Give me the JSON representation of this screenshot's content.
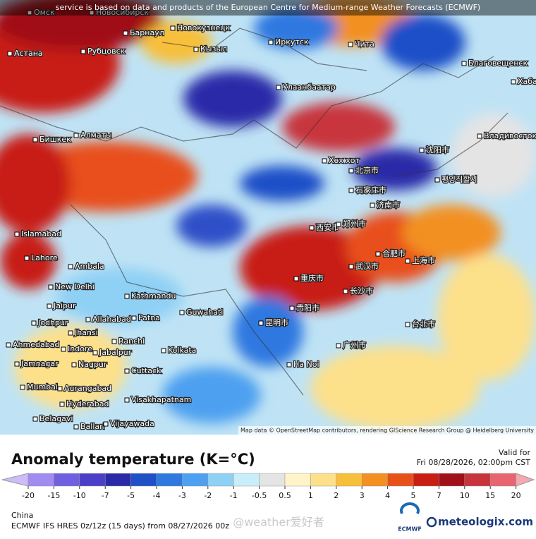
{
  "header": {
    "notice": "service is based on data and products of the European Centre for Medium-range Weather Forecasts (ECMWF)"
  },
  "map": {
    "attribution": "Map data © OpenStreetMap contributors, rendering GIScience Research Group @ Heidelberg University",
    "cities": [
      {
        "name": "Омск"
      },
      {
        "name": "Новосибирск"
      },
      {
        "name": "Барнаул"
      },
      {
        "name": "Новокузнецк"
      },
      {
        "name": "Астана"
      },
      {
        "name": "Рубцовск"
      },
      {
        "name": "Кызыл"
      },
      {
        "name": "Иркутск"
      },
      {
        "name": "Чита"
      },
      {
        "name": "Улаанбаатар"
      },
      {
        "name": "Благовещенск"
      },
      {
        "name": "Хабар"
      },
      {
        "name": "Бишкек"
      },
      {
        "name": "Алматы"
      },
      {
        "name": "Владивосток"
      },
      {
        "name": "Хөх хот"
      },
      {
        "name": "北京市"
      },
      {
        "name": "沈阳市"
      },
      {
        "name": "평양직할시"
      },
      {
        "name": "石家庄市"
      },
      {
        "name": "济南市"
      },
      {
        "name": "西安市"
      },
      {
        "name": "郑州市"
      },
      {
        "name": "合肥市"
      },
      {
        "name": "上海市"
      },
      {
        "name": "武汉市"
      },
      {
        "name": "重庆市"
      },
      {
        "name": "长沙市"
      },
      {
        "name": "贵阳市"
      },
      {
        "name": "昆明市"
      },
      {
        "name": "广州市"
      },
      {
        "name": "台北市"
      },
      {
        "name": "Ha Noi"
      },
      {
        "name": "Islamabad"
      },
      {
        "name": "Lahore"
      },
      {
        "name": "Ambala"
      },
      {
        "name": "New Delhi"
      },
      {
        "name": "Kathmandu"
      },
      {
        "name": "Guwahati"
      },
      {
        "name": "Jaipur"
      },
      {
        "name": "Jodhpur"
      },
      {
        "name": "Allahabad"
      },
      {
        "name": "Patna"
      },
      {
        "name": "Jhansi"
      },
      {
        "name": "Ahmedabad"
      },
      {
        "name": "Indore"
      },
      {
        "name": "Ranchi"
      },
      {
        "name": "Kolkata"
      },
      {
        "name": "Jabalpur"
      },
      {
        "name": "Jamnagar"
      },
      {
        "name": "Nagpur"
      },
      {
        "name": "Cuttack"
      },
      {
        "name": "Mumbai"
      },
      {
        "name": "Aurangabad"
      },
      {
        "name": "Hyderabad"
      },
      {
        "name": "Visakhapatnam"
      },
      {
        "name": "Belagavi"
      },
      {
        "name": "Ballari"
      },
      {
        "name": "Vijayawada"
      }
    ]
  },
  "legend": {
    "title": "Anomaly temperature (K=°C)",
    "valid_label": "Valid for",
    "valid_time": "Fri 08/28/2026, 02:00pm CST",
    "ticks": [
      -20,
      -15,
      -10,
      -7,
      -5,
      -4,
      -3,
      -2,
      -1,
      -0.5,
      0.5,
      1,
      2,
      3,
      4,
      5,
      7,
      10,
      15,
      20
    ],
    "colors": [
      "#cdbcf7",
      "#a08cf0",
      "#7060e0",
      "#4b3fc8",
      "#2a2aa8",
      "#1f50c8",
      "#2f78e0",
      "#4ea0f0",
      "#8fd0f5",
      "#c8eefa",
      "#e4e4e4",
      "#fff4c8",
      "#fde08a",
      "#f7bf3a",
      "#f39020",
      "#e8501a",
      "#c81e14",
      "#a01018",
      "#c8343c",
      "#e86470",
      "#f5a8b0"
    ]
  },
  "footer": {
    "region": "China",
    "model": "ECMWF IFS HRES 0z/12z (15 days) from 08/27/2026 00z",
    "watermark": "@weather爱好者",
    "logo1": "ECMWF",
    "logo2": "meteologix.com"
  }
}
